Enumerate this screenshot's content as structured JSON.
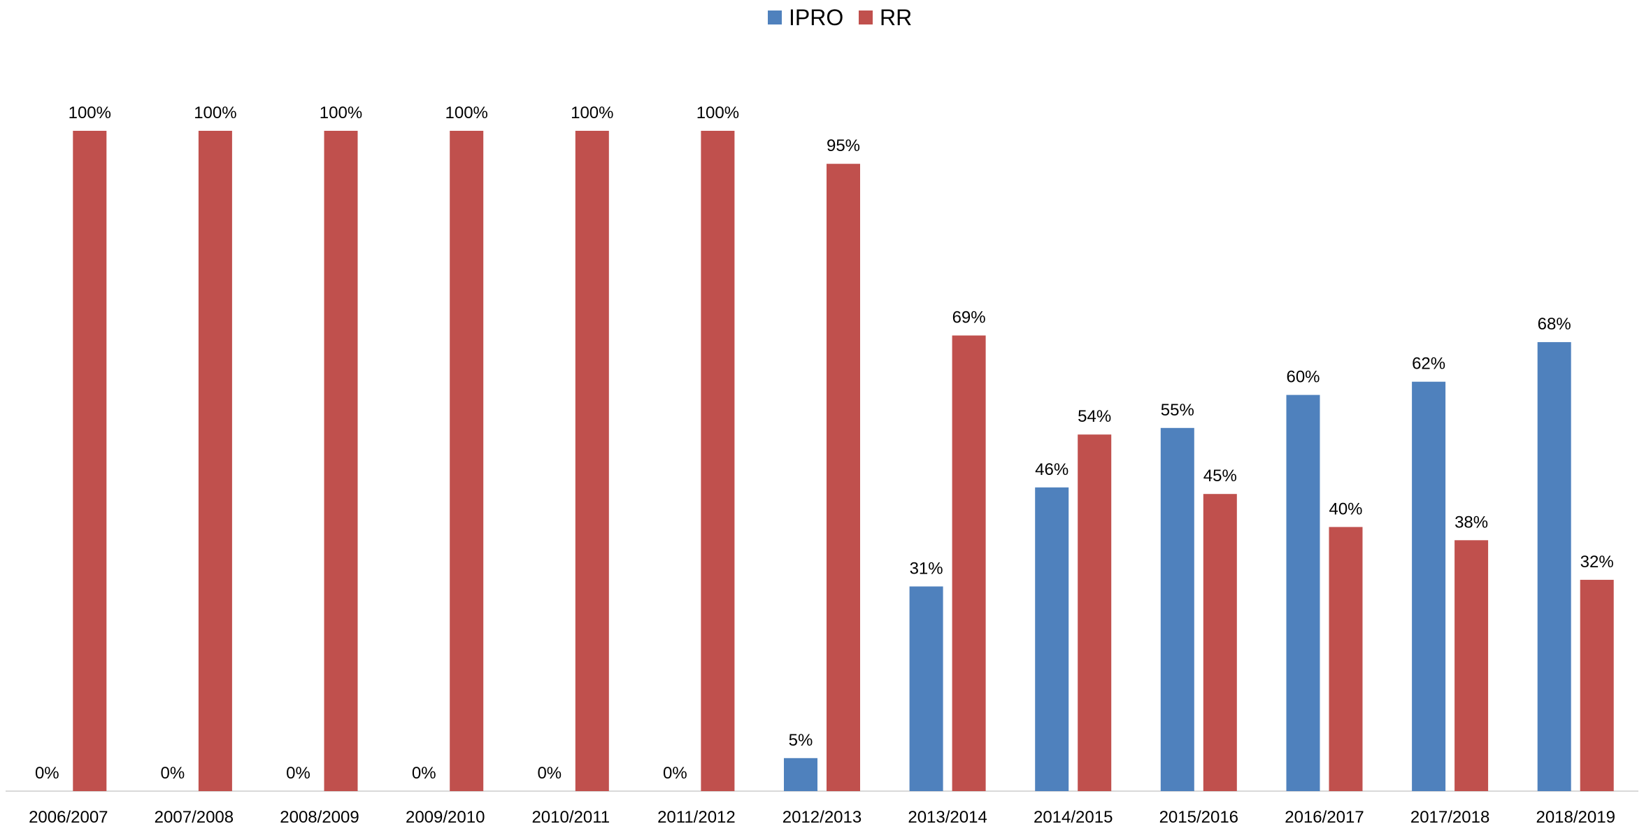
{
  "chart_data": {
    "type": "bar",
    "title": "",
    "xlabel": "",
    "ylabel": "",
    "ylim": [
      0,
      100
    ],
    "grid": false,
    "legend": "top",
    "categories": [
      "2006/2007",
      "2007/2008",
      "2008/2009",
      "2009/2010",
      "2010/2011",
      "2011/2012",
      "2012/2013",
      "2013/2014",
      "2014/2015",
      "2015/2016",
      "2016/2017",
      "2017/2018",
      "2018/2019"
    ],
    "series": [
      {
        "name": "IPRO",
        "color": "#4f81bd",
        "values": [
          0,
          0,
          0,
          0,
          0,
          0,
          5,
          31,
          46,
          55,
          60,
          62,
          68
        ],
        "labels": [
          "0%",
          "0%",
          "0%",
          "0%",
          "0%",
          "0%",
          "5%",
          "31%",
          "46%",
          "55%",
          "60%",
          "62%",
          "68%"
        ]
      },
      {
        "name": "RR",
        "color": "#c0504d",
        "values": [
          100,
          100,
          100,
          100,
          100,
          100,
          95,
          69,
          54,
          45,
          40,
          38,
          32
        ],
        "labels": [
          "100%",
          "100%",
          "100%",
          "100%",
          "100%",
          "100%",
          "95%",
          "69%",
          "54%",
          "45%",
          "40%",
          "38%",
          "32%"
        ]
      }
    ]
  }
}
